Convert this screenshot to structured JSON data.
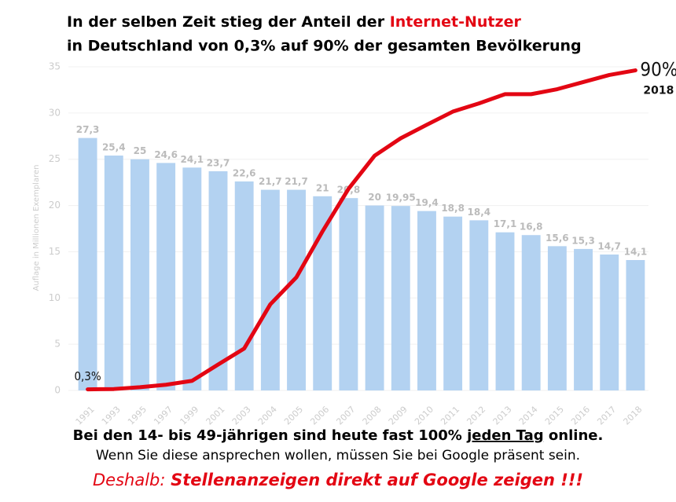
{
  "chart_data": {
    "type": "bar",
    "title_parts": [
      "In der selben Zeit stieg der Anteil der ",
      "Internet-Nutzer"
    ],
    "subtitle": "in Deutschland von 0,3% auf 90% der gesamten Bevölkerung",
    "y_label": "Auflage in Millionen Exemplaren",
    "categories": [
      "1991",
      "1993",
      "1995",
      "1997",
      "1999",
      "2001",
      "2003",
      "2004",
      "2005",
      "2006",
      "2007",
      "2008",
      "2009",
      "2010",
      "2011",
      "2012",
      "2013",
      "2014",
      "2015",
      "2016",
      "2017",
      "2018"
    ],
    "values": [
      27.3,
      25.4,
      25,
      24.6,
      24.1,
      23.7,
      22.6,
      21.7,
      21.7,
      21,
      20.8,
      20,
      19.95,
      19.4,
      18.8,
      18.4,
      17.1,
      16.8,
      15.6,
      15.3,
      14.7,
      14.1
    ],
    "value_labels": [
      "27,3",
      "25,4",
      "25",
      "24,6",
      "24,1",
      "23,7",
      "22,6",
      "21,7",
      "21,7",
      "21",
      "20,8",
      "20",
      "19,95",
      "19,4",
      "18,8",
      "18,4",
      "17,1",
      "16,8",
      "15,6",
      "15,3",
      "14,7",
      "14,1"
    ],
    "color": "#b3d2f1",
    "ylim": [
      0,
      35
    ],
    "yticks": [
      0,
      5,
      10,
      15,
      20,
      25,
      30,
      35
    ],
    "grid": true,
    "y2lim": [
      0,
      91
    ],
    "series": [
      {
        "type": "line",
        "axis": "y2",
        "color": "#e30613",
        "values": [
          0.3,
          0.4,
          0.9,
          1.6,
          2.7,
          7.3,
          11.8,
          24.2,
          31.8,
          44.7,
          56.7,
          66,
          70.9,
          74.7,
          78.4,
          80.7,
          83.3,
          83.3,
          84.7,
          86.7,
          88.7,
          90
        ],
        "value_labels": [
          "0,3%",
          null,
          null,
          null,
          null,
          null,
          null,
          null,
          null,
          null,
          null,
          null,
          null,
          null,
          null,
          null,
          null,
          null,
          null,
          null,
          null,
          "90%"
        ]
      }
    ]
  },
  "footer": {
    "line1_parts": [
      "Bei den 14- bis 49-jährigen sind heute fast 100% ",
      "jeden Tag",
      " online."
    ],
    "line2": "Wenn Sie diese ansprechen wollen, müssen Sie bei Google präsent sein.",
    "line3_parts": [
      "Deshalb: ",
      "Stellenanzeigen direkt auf Google zeigen !!!"
    ]
  }
}
